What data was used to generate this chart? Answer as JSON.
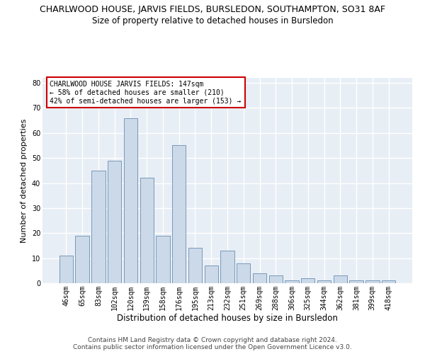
{
  "title": "CHARLWOOD HOUSE, JARVIS FIELDS, BURSLEDON, SOUTHAMPTON, SO31 8AF",
  "subtitle": "Size of property relative to detached houses in Bursledon",
  "xlabel": "Distribution of detached houses by size in Bursledon",
  "ylabel": "Number of detached properties",
  "categories": [
    "46sqm",
    "65sqm",
    "83sqm",
    "102sqm",
    "120sqm",
    "139sqm",
    "158sqm",
    "176sqm",
    "195sqm",
    "213sqm",
    "232sqm",
    "251sqm",
    "269sqm",
    "288sqm",
    "306sqm",
    "325sqm",
    "344sqm",
    "362sqm",
    "381sqm",
    "399sqm",
    "418sqm"
  ],
  "values": [
    11,
    19,
    45,
    49,
    66,
    42,
    19,
    55,
    14,
    7,
    13,
    8,
    4,
    3,
    1,
    2,
    1,
    3,
    1,
    1,
    1
  ],
  "bar_color": "#ccd9e8",
  "bar_edge_color": "#7799bb",
  "annotation_text": "CHARLWOOD HOUSE JARVIS FIELDS: 147sqm\n← 58% of detached houses are smaller (210)\n42% of semi-detached houses are larger (153) →",
  "annotation_box_color": "#ffffff",
  "annotation_box_edge_color": "#cc0000",
  "ylim": [
    0,
    82
  ],
  "yticks": [
    0,
    10,
    20,
    30,
    40,
    50,
    60,
    70,
    80
  ],
  "background_color": "#e8eef5",
  "grid_color": "#ffffff",
  "title_fontsize": 9,
  "subtitle_fontsize": 8.5,
  "xlabel_fontsize": 8.5,
  "ylabel_fontsize": 8,
  "tick_fontsize": 7,
  "annot_fontsize": 7,
  "footer_text": "Contains HM Land Registry data © Crown copyright and database right 2024.\nContains public sector information licensed under the Open Government Licence v3.0.",
  "footer_fontsize": 6.5
}
